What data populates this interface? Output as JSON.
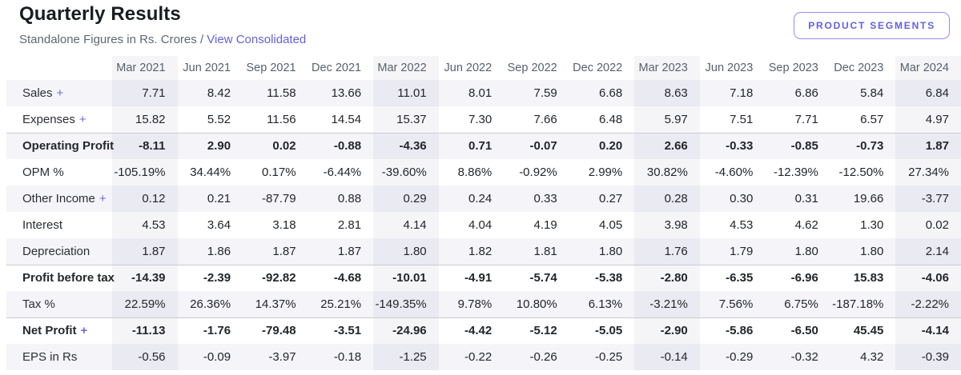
{
  "header": {
    "title": "Quarterly Results",
    "subtitle": "Standalone Figures in Rs. Crores",
    "separator": " / ",
    "link_label": "View Consolidated",
    "button_label": "PRODUCT SEGMENTS"
  },
  "colors": {
    "accent": "#6360e0",
    "stripe": "#f4f4f9",
    "highlight_column": "rgba(124,124,156,0.075)",
    "header_text": "#57616c",
    "body_text": "#22262b"
  },
  "table": {
    "columns": [
      "Mar 2021",
      "Jun 2021",
      "Sep 2021",
      "Dec 2021",
      "Mar 2022",
      "Jun 2022",
      "Sep 2022",
      "Dec 2022",
      "Mar 2023",
      "Jun 2023",
      "Sep 2023",
      "Dec 2023",
      "Mar 2024"
    ],
    "highlight_columns": [
      0,
      4,
      8,
      12
    ],
    "rows": [
      {
        "label": "Sales",
        "suffix": "+",
        "bold": false,
        "values": [
          "7.71",
          "8.42",
          "11.58",
          "13.66",
          "11.01",
          "8.01",
          "7.59",
          "6.68",
          "8.63",
          "7.18",
          "6.86",
          "5.84",
          "6.84"
        ]
      },
      {
        "label": "Expenses",
        "suffix": "+",
        "bold": false,
        "values": [
          "15.82",
          "5.52",
          "11.56",
          "14.54",
          "15.37",
          "7.30",
          "7.66",
          "6.48",
          "5.97",
          "7.51",
          "7.71",
          "6.57",
          "4.97"
        ]
      },
      {
        "label": "Operating Profit",
        "suffix": "",
        "bold": true,
        "values": [
          "-8.11",
          "2.90",
          "0.02",
          "-0.88",
          "-4.36",
          "0.71",
          "-0.07",
          "0.20",
          "2.66",
          "-0.33",
          "-0.85",
          "-0.73",
          "1.87"
        ]
      },
      {
        "label": "OPM %",
        "suffix": "",
        "bold": false,
        "values": [
          "-105.19%",
          "34.44%",
          "0.17%",
          "-6.44%",
          "-39.60%",
          "8.86%",
          "-0.92%",
          "2.99%",
          "30.82%",
          "-4.60%",
          "-12.39%",
          "-12.50%",
          "27.34%"
        ]
      },
      {
        "label": "Other Income",
        "suffix": "+",
        "bold": false,
        "values": [
          "0.12",
          "0.21",
          "-87.79",
          "0.88",
          "0.29",
          "0.24",
          "0.33",
          "0.27",
          "0.28",
          "0.30",
          "0.31",
          "19.66",
          "-3.77"
        ]
      },
      {
        "label": "Interest",
        "suffix": "",
        "bold": false,
        "values": [
          "4.53",
          "3.64",
          "3.18",
          "2.81",
          "4.14",
          "4.04",
          "4.19",
          "4.05",
          "3.98",
          "4.53",
          "4.62",
          "1.30",
          "0.02"
        ]
      },
      {
        "label": "Depreciation",
        "suffix": "",
        "bold": false,
        "values": [
          "1.87",
          "1.86",
          "1.87",
          "1.87",
          "1.80",
          "1.82",
          "1.81",
          "1.80",
          "1.76",
          "1.79",
          "1.80",
          "1.80",
          "2.14"
        ]
      },
      {
        "label": "Profit before tax",
        "suffix": "",
        "bold": true,
        "values": [
          "-14.39",
          "-2.39",
          "-92.82",
          "-4.68",
          "-10.01",
          "-4.91",
          "-5.74",
          "-5.38",
          "-2.80",
          "-6.35",
          "-6.96",
          "15.83",
          "-4.06"
        ]
      },
      {
        "label": "Tax %",
        "suffix": "",
        "bold": false,
        "values": [
          "22.59%",
          "26.36%",
          "14.37%",
          "25.21%",
          "-149.35%",
          "9.78%",
          "10.80%",
          "6.13%",
          "-3.21%",
          "7.56%",
          "6.75%",
          "-187.18%",
          "-2.22%"
        ]
      },
      {
        "label": "Net Profit",
        "suffix": "+",
        "bold": true,
        "values": [
          "-11.13",
          "-1.76",
          "-79.48",
          "-3.51",
          "-24.96",
          "-4.42",
          "-5.12",
          "-5.05",
          "-2.90",
          "-5.86",
          "-6.50",
          "45.45",
          "-4.14"
        ]
      },
      {
        "label": "EPS in Rs",
        "suffix": "",
        "bold": false,
        "values": [
          "-0.56",
          "-0.09",
          "-3.97",
          "-0.18",
          "-1.25",
          "-0.22",
          "-0.26",
          "-0.25",
          "-0.14",
          "-0.29",
          "-0.32",
          "4.32",
          "-0.39"
        ]
      }
    ]
  }
}
